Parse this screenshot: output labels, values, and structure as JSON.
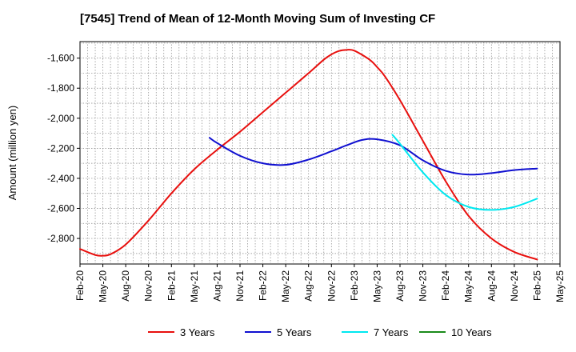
{
  "chart_data": {
    "type": "line",
    "title": "[7545]  Trend of Mean of 12-Month Moving Sum of Investing CF",
    "xlabel": "",
    "ylabel": "Amount (million yen)",
    "ylim": [
      -2970,
      -1490
    ],
    "yticks": [
      -1600,
      -1800,
      -2000,
      -2200,
      -2400,
      -2600,
      -2800
    ],
    "ytick_labels": [
      "-1,600",
      "-1,800",
      "-2,000",
      "-2,200",
      "-2,400",
      "-2,600",
      "-2,800"
    ],
    "x_range": [
      "2020-02",
      "2025-05"
    ],
    "xtick_labels": [
      "Feb-20",
      "May-20",
      "Aug-20",
      "Nov-20",
      "Feb-21",
      "May-21",
      "Aug-21",
      "Nov-21",
      "Feb-22",
      "May-22",
      "Aug-22",
      "Nov-22",
      "Feb-23",
      "May-23",
      "Aug-23",
      "Nov-23",
      "Feb-24",
      "May-24",
      "Aug-24",
      "Nov-24",
      "Feb-25",
      "May-25"
    ],
    "grid": true,
    "legend_position": "bottom",
    "series": [
      {
        "name": "3 Years",
        "color": "#e8100e",
        "x": [
          "2020-02",
          "2020-04",
          "2020-05",
          "2020-06",
          "2020-08",
          "2020-11",
          "2021-02",
          "2021-05",
          "2021-08",
          "2021-11",
          "2022-02",
          "2022-05",
          "2022-08",
          "2022-10",
          "2022-11",
          "2022-12",
          "2023-01",
          "2023-02",
          "2023-04",
          "2023-05",
          "2023-06",
          "2023-08",
          "2023-11",
          "2024-02",
          "2024-05",
          "2024-08",
          "2024-11",
          "2025-02"
        ],
        "values": [
          -2870,
          -2910,
          -2915,
          -2905,
          -2840,
          -2680,
          -2500,
          -2340,
          -2210,
          -2090,
          -1960,
          -1830,
          -1700,
          -1610,
          -1575,
          -1552,
          -1545,
          -1550,
          -1610,
          -1660,
          -1720,
          -1880,
          -2150,
          -2420,
          -2650,
          -2800,
          -2890,
          -2940
        ]
      },
      {
        "name": "5 Years",
        "color": "#1010d0",
        "x": [
          "2021-07",
          "2021-08",
          "2021-11",
          "2022-02",
          "2022-05",
          "2022-08",
          "2022-11",
          "2023-01",
          "2023-03",
          "2023-05",
          "2023-08",
          "2023-11",
          "2024-02",
          "2024-05",
          "2024-08",
          "2024-11",
          "2025-02"
        ],
        "values": [
          -2130,
          -2165,
          -2250,
          -2300,
          -2310,
          -2275,
          -2220,
          -2180,
          -2145,
          -2140,
          -2180,
          -2280,
          -2350,
          -2375,
          -2365,
          -2345,
          -2335
        ]
      },
      {
        "name": "7 Years",
        "color": "#00e8f0",
        "x": [
          "2023-07",
          "2023-08",
          "2023-11",
          "2024-02",
          "2024-05",
          "2024-08",
          "2024-11",
          "2025-02"
        ],
        "values": [
          -2110,
          -2170,
          -2360,
          -2510,
          -2590,
          -2610,
          -2590,
          -2535
        ]
      },
      {
        "name": "10 Years",
        "color": "#1a8a1a",
        "x": [],
        "values": []
      }
    ]
  }
}
